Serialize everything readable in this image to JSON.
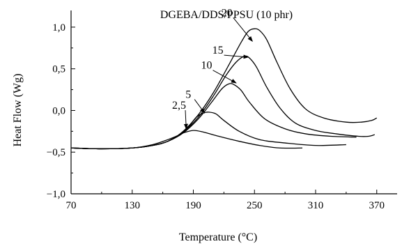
{
  "chart_data": {
    "type": "line",
    "title": "DGEBA/DDS/PPSU (10 phr)",
    "xlabel": "Temperature (°C)",
    "ylabel": "Heat Flow (Wg)",
    "xlim": [
      70,
      390
    ],
    "ylim": [
      -1.0,
      1.2
    ],
    "xticks": [
      70,
      130,
      190,
      250,
      310,
      370
    ],
    "xtick_labels": [
      "70",
      "130",
      "190",
      "250",
      "310",
      "370"
    ],
    "yticks": [
      -1.0,
      -0.5,
      0.0,
      0.5,
      1.0
    ],
    "ytick_labels": [
      "−1,0",
      "−0,5",
      "0,0",
      "0,5",
      "1,0"
    ],
    "grid": false,
    "series": [
      {
        "name": "2,5",
        "x": [
          70,
          100,
          130,
          150,
          165,
          175,
          180,
          190,
          200,
          215,
          235,
          255,
          275,
          297
        ],
        "y": [
          -0.45,
          -0.46,
          -0.45,
          -0.41,
          -0.35,
          -0.3,
          -0.27,
          -0.24,
          -0.26,
          -0.31,
          -0.37,
          -0.42,
          -0.45,
          -0.45
        ],
        "label": {
          "text": "2,5",
          "lx": 176,
          "ly": 0.02,
          "ax": 183,
          "ay": -0.22
        }
      },
      {
        "name": "5",
        "x": [
          70,
          100,
          130,
          150,
          165,
          175,
          185,
          193,
          200,
          205,
          212,
          220,
          235,
          255,
          280,
          310,
          340
        ],
        "y": [
          -0.45,
          -0.46,
          -0.45,
          -0.42,
          -0.37,
          -0.3,
          -0.2,
          -0.08,
          -0.03,
          -0.02,
          -0.04,
          -0.12,
          -0.25,
          -0.35,
          -0.39,
          -0.42,
          -0.41
        ],
        "label": {
          "text": "5",
          "lx": 185,
          "ly": 0.15,
          "ax": 201,
          "ay": -0.03
        }
      },
      {
        "name": "10",
        "x": [
          70,
          100,
          130,
          150,
          165,
          180,
          195,
          208,
          218,
          225,
          230,
          237,
          245,
          260,
          280,
          300,
          325,
          350
        ],
        "y": [
          -0.45,
          -0.46,
          -0.45,
          -0.42,
          -0.37,
          -0.27,
          -0.1,
          0.1,
          0.26,
          0.32,
          0.31,
          0.24,
          0.1,
          -0.1,
          -0.22,
          -0.28,
          -0.31,
          -0.32
        ],
        "label": {
          "text": "10",
          "lx": 203,
          "ly": 0.5,
          "ax": 232,
          "ay": 0.33
        }
      },
      {
        "name": "15",
        "x": [
          70,
          100,
          130,
          150,
          165,
          180,
          195,
          210,
          222,
          232,
          240,
          245,
          252,
          262,
          275,
          290,
          310,
          330,
          352,
          362,
          368
        ],
        "y": [
          -0.45,
          -0.46,
          -0.45,
          -0.42,
          -0.37,
          -0.26,
          -0.08,
          0.18,
          0.42,
          0.58,
          0.65,
          0.63,
          0.52,
          0.28,
          0.03,
          -0.15,
          -0.24,
          -0.28,
          -0.31,
          -0.31,
          -0.29
        ],
        "label": {
          "text": "15",
          "lx": 214,
          "ly": 0.68,
          "ax": 244,
          "ay": 0.64
        }
      },
      {
        "name": "20",
        "x": [
          70,
          100,
          130,
          150,
          165,
          180,
          195,
          210,
          225,
          237,
          244,
          250,
          255,
          262,
          272,
          285,
          300,
          318,
          340,
          355,
          365,
          370
        ],
        "y": [
          -0.45,
          -0.46,
          -0.45,
          -0.42,
          -0.37,
          -0.25,
          -0.05,
          0.22,
          0.55,
          0.82,
          0.95,
          0.98,
          0.96,
          0.85,
          0.58,
          0.26,
          0.02,
          -0.09,
          -0.14,
          -0.14,
          -0.12,
          -0.09
        ],
        "label": {
          "text": "20",
          "lx": 223,
          "ly": 1.13,
          "ax": 248,
          "ay": 0.83
        }
      }
    ]
  }
}
